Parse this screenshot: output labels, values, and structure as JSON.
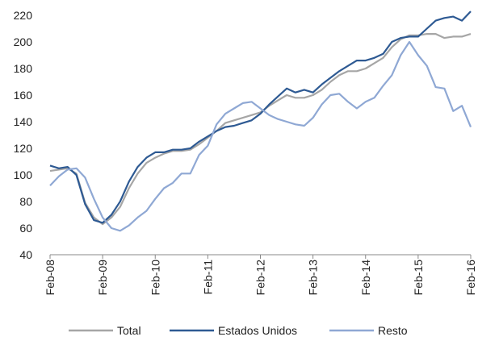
{
  "chart_data": {
    "type": "line",
    "categories": [
      "Feb-08",
      null,
      null,
      null,
      null,
      null,
      "Feb-09",
      null,
      null,
      null,
      null,
      null,
      "Feb-10",
      null,
      null,
      null,
      null,
      null,
      "Feb-11",
      null,
      null,
      null,
      null,
      null,
      "Feb-12",
      null,
      null,
      null,
      null,
      null,
      "Feb-13",
      null,
      null,
      null,
      null,
      null,
      "Feb-14",
      null,
      null,
      null,
      null,
      null,
      "Feb-15",
      null,
      null,
      null,
      null,
      null,
      "Feb-16"
    ],
    "series": [
      {
        "name": "Total",
        "color": "#a6a6a6",
        "values": [
          103,
          104,
          105,
          101,
          79,
          68,
          63,
          68,
          76,
          90,
          101,
          109,
          113,
          116,
          118,
          118,
          119,
          123,
          128,
          133,
          139,
          141,
          143,
          145,
          147,
          152,
          156,
          160,
          158,
          158,
          160,
          164,
          170,
          175,
          178,
          178,
          180,
          184,
          188,
          196,
          202,
          205,
          205,
          206,
          206,
          203,
          204,
          204,
          206
        ]
      },
      {
        "name": "Estados Unidos",
        "color": "#2e5a93",
        "values": [
          107,
          105,
          106,
          100,
          78,
          66,
          64,
          70,
          80,
          95,
          106,
          113,
          117,
          117,
          119,
          119,
          120,
          125,
          129,
          133,
          136,
          137,
          139,
          141,
          146,
          153,
          159,
          165,
          162,
          164,
          162,
          168,
          173,
          178,
          182,
          186,
          186,
          188,
          191,
          200,
          203,
          204,
          204,
          210,
          216,
          218,
          219,
          216,
          223
        ]
      },
      {
        "name": "Resto",
        "color": "#8fa8d4",
        "values": [
          92,
          99,
          104,
          105,
          98,
          82,
          68,
          60,
          58,
          62,
          68,
          73,
          82,
          90,
          94,
          101,
          101,
          115,
          122,
          138,
          146,
          150,
          154,
          155,
          150,
          145,
          142,
          140,
          138,
          137,
          143,
          153,
          160,
          161,
          155,
          150,
          155,
          158,
          167,
          175,
          190,
          200,
          190,
          182,
          166,
          165,
          148,
          152,
          136
        ]
      }
    ],
    "ylim": [
      40,
      220
    ],
    "yticks": [
      40,
      60,
      80,
      100,
      120,
      140,
      160,
      180,
      200,
      220
    ],
    "legend": "bottom"
  }
}
